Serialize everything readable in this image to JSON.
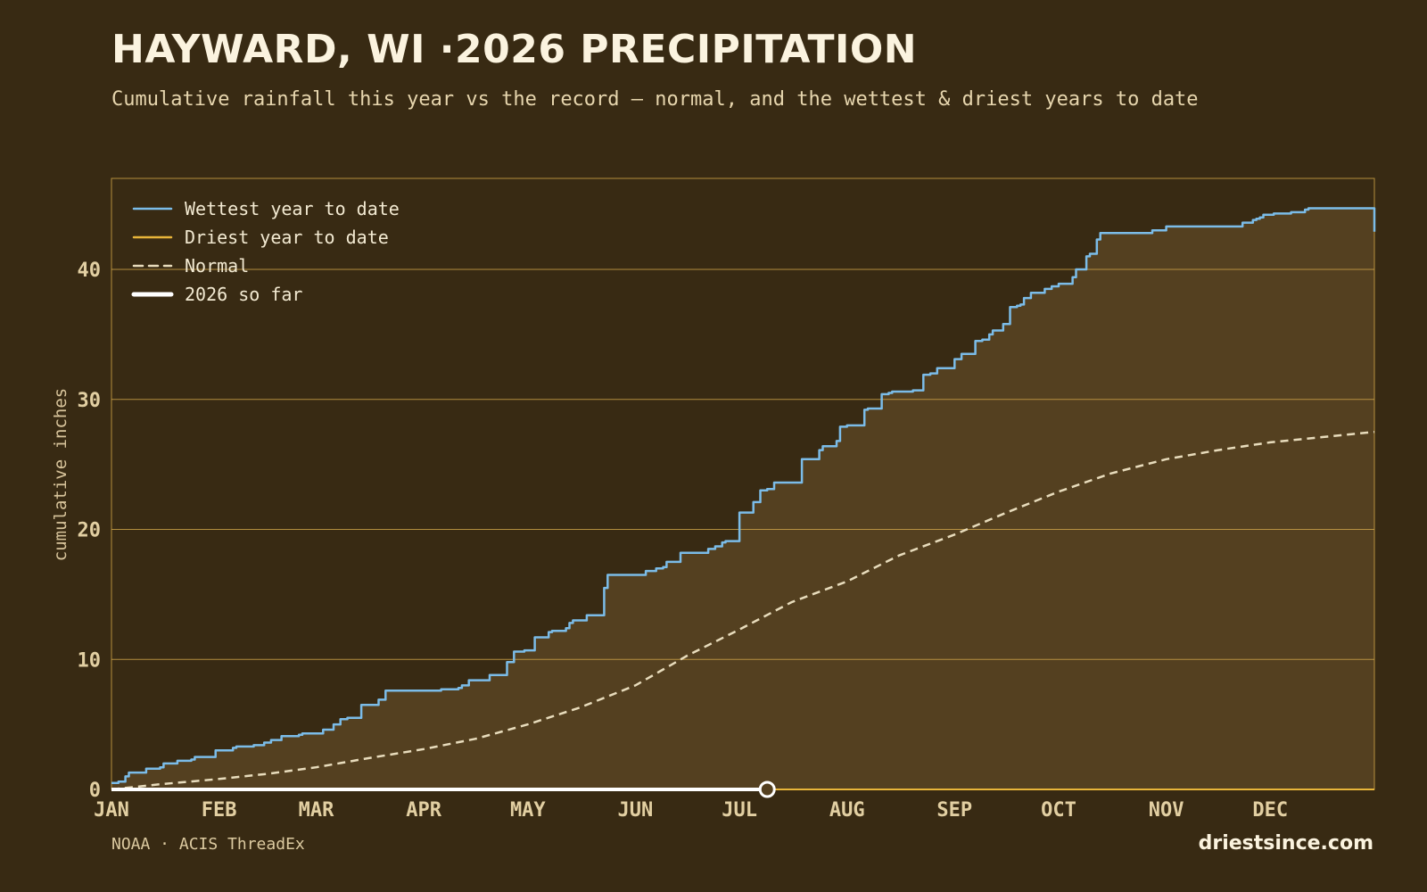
{
  "header": {
    "title": "HAYWARD, WI ·2026 PRECIPITATION",
    "subtitle": "Cumulative rainfall this year vs the record — normal, and the wettest & driest years to date"
  },
  "footer": {
    "source": "NOAA · ACIS ThreadEx",
    "brand": "driestsince.com"
  },
  "colors": {
    "background": "#382a13",
    "fill": "#544020",
    "grid": "#c9a047",
    "wettest": "#7bbce8",
    "driest": "#e8b53a",
    "normal": "#e8dcbc",
    "current": "#ffffff"
  },
  "chart_data": {
    "type": "line",
    "title": "HAYWARD, WI ·2026 PRECIPITATION",
    "subtitle": "Cumulative rainfall this year vs the record — normal, and the wettest & driest years to date",
    "xlabel": "",
    "ylabel": "cumulative inches",
    "x_unit": "day of year",
    "xlim": [
      1,
      365
    ],
    "ylim": [
      0,
      47
    ],
    "yticks": [
      0,
      10,
      20,
      30,
      40
    ],
    "ytick_labels": [
      "0",
      "10",
      "20",
      "30",
      "40"
    ],
    "xtick_days": [
      1,
      32,
      60,
      91,
      121,
      152,
      182,
      213,
      244,
      274,
      305,
      335
    ],
    "xtick_labels": [
      "JAN",
      "FEB",
      "MAR",
      "APR",
      "MAY",
      "JUN",
      "JUL",
      "AUG",
      "SEP",
      "OCT",
      "NOV",
      "DEC"
    ],
    "grid": true,
    "legend_position": "top-left",
    "series": [
      {
        "name": "Wettest year to date",
        "style": "solid",
        "color": "#7bbce8",
        "x": [
          1,
          3,
          5,
          6,
          10,
          11,
          15,
          16,
          20,
          24,
          25,
          31,
          32,
          36,
          37,
          42,
          45,
          47,
          50,
          55,
          56,
          62,
          65,
          67,
          69,
          73,
          75,
          78,
          80,
          87,
          95,
          96,
          101,
          102,
          104,
          105,
          110,
          115,
          117,
          120,
          123,
          127,
          128,
          132,
          133,
          134,
          138,
          143,
          144,
          149,
          155,
          158,
          160,
          161,
          165,
          170,
          173,
          175,
          177,
          178,
          182,
          183,
          186,
          188,
          190,
          192,
          200,
          203,
          205,
          206,
          210,
          211,
          213,
          218,
          219,
          223,
          225,
          226,
          232,
          235,
          237,
          239,
          241,
          244,
          246,
          250,
          252,
          254,
          255,
          258,
          260,
          262,
          263,
          264,
          266,
          270,
          272,
          274,
          278,
          279,
          280,
          282,
          283,
          285,
          286,
          300,
          301,
          305,
          310,
          325,
          327,
          330,
          331,
          332,
          333,
          336,
          341,
          345,
          346,
          365
        ],
        "y": [
          0.5,
          0.6,
          1.0,
          1.3,
          1.3,
          1.6,
          1.7,
          2.0,
          2.2,
          2.3,
          2.5,
          3.0,
          3.0,
          3.2,
          3.3,
          3.4,
          3.6,
          3.8,
          4.1,
          4.2,
          4.3,
          4.6,
          5.0,
          5.4,
          5.5,
          6.5,
          6.5,
          6.9,
          7.6,
          7.6,
          7.6,
          7.7,
          7.8,
          8.0,
          8.4,
          8.4,
          8.8,
          9.8,
          10.6,
          10.7,
          11.7,
          12.1,
          12.2,
          12.4,
          12.8,
          13.0,
          13.4,
          15.5,
          16.5,
          16.5,
          16.8,
          17.0,
          17.1,
          17.5,
          18.2,
          18.2,
          18.5,
          18.7,
          19.0,
          19.1,
          21.3,
          21.3,
          22.1,
          23.0,
          23.1,
          23.6,
          25.4,
          25.4,
          26.1,
          26.4,
          26.8,
          27.9,
          28.0,
          29.2,
          29.3,
          30.4,
          30.5,
          30.6,
          30.7,
          31.9,
          32.0,
          32.4,
          32.4,
          33.1,
          33.5,
          34.5,
          34.6,
          35.0,
          35.3,
          35.8,
          37.1,
          37.2,
          37.3,
          37.8,
          38.2,
          38.5,
          38.7,
          38.9,
          39.4,
          40.0,
          40.0,
          41.0,
          41.2,
          42.3,
          42.8,
          42.8,
          43.0,
          43.3,
          43.3,
          43.3,
          43.6,
          43.8,
          43.9,
          44.0,
          44.2,
          44.3,
          44.4,
          44.6,
          44.7,
          42.9
        ]
      },
      {
        "name": "Driest year to date",
        "style": "solid",
        "color": "#e8b53a",
        "x": [
          1,
          365
        ],
        "y": [
          0,
          0
        ]
      },
      {
        "name": "Normal",
        "style": "dashed",
        "color": "#e8dcbc",
        "x": [
          1,
          15,
          32,
          46,
          60,
          75,
          91,
          106,
          121,
          136,
          152,
          167,
          182,
          197,
          213,
          228,
          244,
          259,
          274,
          289,
          305,
          320,
          335,
          350,
          365
        ],
        "y": [
          0.0,
          0.4,
          0.8,
          1.2,
          1.7,
          2.4,
          3.1,
          3.9,
          5.0,
          6.3,
          8.0,
          10.3,
          12.3,
          14.4,
          16.0,
          18.0,
          19.6,
          21.3,
          22.9,
          24.3,
          25.4,
          26.1,
          26.7,
          27.1,
          27.5
        ]
      },
      {
        "name": "2026 so far",
        "style": "solid",
        "color": "#ffffff",
        "x": [
          1,
          190
        ],
        "y": [
          0,
          0
        ],
        "current_day": 190
      }
    ]
  }
}
